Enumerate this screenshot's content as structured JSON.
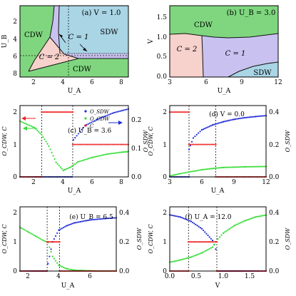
{
  "chart_data": [
    {
      "id": "a",
      "type": "phase-diagram",
      "title": "(a) V = 1.0",
      "xlabel": "U_A",
      "ylabel": "U_B",
      "xlim": [
        1,
        8.5
      ],
      "ylim": [
        8.5,
        0.2
      ],
      "x_ticks": [
        "2",
        "4",
        "6",
        "8"
      ],
      "y_ticks": [
        "2",
        "4",
        "6",
        "8"
      ],
      "regions": [
        {
          "label": "CDW",
          "color": "#7fd67f"
        },
        {
          "label": "SDW",
          "color": "#a9d5e5"
        },
        {
          "label": "C = 1",
          "color": "#c9c2f0"
        },
        {
          "label": "C = 2",
          "color": "#f7d1cb"
        },
        {
          "label": "CDW",
          "color": "#7fd67f"
        }
      ],
      "boundaries": {
        "vertical": {
          "x": [
            3.75,
            3.6,
            3.35,
            2.8,
            2.3,
            1.9
          ],
          "y": [
            0.2,
            2.5,
            3.5,
            5.0,
            6.5,
            7.4
          ]
        },
        "horizontal": {
          "x": [
            4.1,
            5,
            6,
            7,
            8.5
          ],
          "y": [
            3.3,
            3.3,
            3.3,
            3.3,
            3.3
          ]
        },
        "c1_c2": {
          "x": [
            3.2,
            3.8,
            4.4,
            5.0,
            8.5
          ],
          "y": [
            2.2,
            2.9,
            3.4,
            3.6,
            3.6
          ]
        }
      },
      "dashed_lines": {
        "x": [
          2.5,
          4.6
        ],
        "y": [
          2.5,
          3.6
        ]
      }
    },
    {
      "id": "b",
      "type": "phase-diagram",
      "title": "(b) U_B = 3.0",
      "xlabel": "U_A",
      "ylabel": "V",
      "xlim": [
        3,
        12
      ],
      "ylim": [
        0,
        1.8
      ],
      "x_ticks": [
        "3",
        "6",
        "9",
        "12"
      ],
      "y_ticks": [
        "0.0",
        "0.5",
        "1.0",
        "1.5"
      ],
      "regions": [
        {
          "label": "CDW",
          "color": "#7fd67f"
        },
        {
          "label": "C = 2",
          "color": "#f7d1cb"
        },
        {
          "label": "C = 1",
          "color": "#c9c2f0"
        },
        {
          "label": "SDW",
          "color": "#a9d5e5"
        }
      ],
      "boundaries": {
        "top": {
          "x": [
            3,
            4,
            5,
            5.3,
            6,
            7,
            8,
            9,
            10,
            11,
            12
          ],
          "y": [
            1.07,
            1.08,
            1.05,
            1.02,
            0.98,
            0.97,
            0.98,
            1.0,
            1.02,
            1.05,
            1.07
          ]
        },
        "c2_c1": {
          "x": [
            5.3,
            5.35,
            5.4,
            5.45,
            5.5
          ],
          "y": [
            1.02,
            0.7,
            0.4,
            0.15,
            0
          ]
        },
        "sdw": {
          "x": [
            7.2,
            8,
            9,
            10,
            11,
            12
          ],
          "y": [
            0,
            0.12,
            0.2,
            0.26,
            0.3,
            0.35
          ]
        }
      }
    },
    {
      "id": "c",
      "type": "scatter",
      "title": "(c) U_B = 3.6",
      "xlabel": "U_A",
      "ylabel": "O_CDW, C",
      "y2label": "O_SDW",
      "xlim": [
        1,
        8.5
      ],
      "ylim": [
        0,
        2.2
      ],
      "y2lim": [
        0,
        0.25
      ],
      "x_ticks": [
        "2",
        "4",
        "6",
        "8"
      ],
      "y_ticks": [
        "0",
        "1",
        "2"
      ],
      "y2_ticks": [
        "0.0",
        "0.1",
        "0.2"
      ],
      "dashed_lines": [
        2.5,
        4.65
      ],
      "series": [
        {
          "name": "O_SDW",
          "color": "#1f2bd6",
          "axis": "right",
          "x": [
            1.0,
            4.6,
            4.7,
            5.5,
            6.5,
            7.5,
            8.5
          ],
          "values": [
            0.0,
            0.0,
            0.13,
            0.18,
            0.205,
            0.225,
            0.238
          ]
        },
        {
          "name": "O_CDW",
          "color": "#33dd33",
          "axis": "left",
          "x": [
            1.0,
            2.0,
            2.5,
            3.0,
            3.5,
            4.0,
            4.5,
            5.0,
            6.0,
            7.0,
            8.0,
            8.5
          ],
          "values": [
            1.72,
            1.52,
            1.3,
            0.95,
            0.45,
            0.2,
            0.3,
            0.46,
            0.6,
            0.7,
            0.76,
            0.78
          ]
        },
        {
          "name": "C",
          "color": "#ee2222",
          "axis": "left",
          "x": [
            1.0,
            2.5,
            2.5,
            4.65,
            4.65,
            8.5
          ],
          "values": [
            0,
            0,
            2,
            2,
            1,
            1
          ]
        }
      ]
    },
    {
      "id": "d",
      "type": "scatter",
      "title": "(d) V = 0.0",
      "xlabel": "U_A",
      "ylabel": "O_CDW, C",
      "y2label": "O_SDW",
      "xlim": [
        3,
        12
      ],
      "ylim": [
        0,
        2.2
      ],
      "y2lim": [
        0,
        0.44
      ],
      "x_ticks": [
        "3",
        "6",
        "9",
        "12"
      ],
      "y_ticks": [
        "0",
        "1",
        "2"
      ],
      "y2_ticks": [
        "0.0",
        "0.2",
        "0.4"
      ],
      "dashed_lines": [
        4.8,
        7.3
      ],
      "series": [
        {
          "name": "O_SDW",
          "color": "#1f2bd6",
          "axis": "right",
          "x": [
            3.0,
            4.8,
            4.8,
            5.2,
            6.0,
            7.0,
            8.0,
            9.0,
            10.0,
            11.0,
            12.0
          ],
          "values": [
            0.0,
            0.0,
            0.17,
            0.24,
            0.29,
            0.32,
            0.34,
            0.355,
            0.365,
            0.372,
            0.378
          ]
        },
        {
          "name": "O_CDW",
          "color": "#33dd33",
          "axis": "left",
          "x": [
            3.0,
            4.0,
            4.8,
            6.0,
            7.3,
            8.0,
            10.0,
            12.0
          ],
          "values": [
            0.03,
            0.1,
            0.15,
            0.22,
            0.27,
            0.29,
            0.31,
            0.32
          ]
        },
        {
          "name": "C",
          "color": "#ee2222",
          "axis": "left",
          "x": [
            3.0,
            4.8,
            4.8,
            7.3,
            7.3,
            12.0
          ],
          "values": [
            2,
            2,
            1,
            1,
            0,
            0
          ]
        }
      ]
    },
    {
      "id": "e",
      "type": "scatter",
      "title": "(e) U_B = 6.5",
      "xlabel": "U_A",
      "ylabel": "O_CDW, C",
      "y2label": "O_SDW",
      "xlim": [
        1.5,
        7.7
      ],
      "ylim": [
        0,
        2.2
      ],
      "y2lim": [
        0,
        0.44
      ],
      "x_ticks": [
        "2",
        "4",
        "6"
      ],
      "y_ticks": [
        "0",
        "1",
        "2"
      ],
      "y2_ticks": [
        "0.0",
        "0.2",
        "0.4"
      ],
      "dashed_lines": [
        3.25,
        4.05
      ],
      "series": [
        {
          "name": "O_SDW",
          "color": "#1f2bd6",
          "axis": "right",
          "x": [
            1.5,
            3.2,
            3.3,
            3.6,
            4.0,
            4.5,
            5.0,
            6.0,
            7.0,
            7.7
          ],
          "values": [
            0.0,
            0.0,
            0.05,
            0.2,
            0.28,
            0.31,
            0.33,
            0.35,
            0.36,
            0.365
          ]
        },
        {
          "name": "O_CDW",
          "color": "#33dd33",
          "axis": "left",
          "x": [
            1.5,
            2.0,
            2.5,
            3.0,
            3.3,
            3.6,
            4.0,
            4.5,
            5.0,
            5.5,
            6.0,
            6.5,
            7.0,
            7.7
          ],
          "values": [
            1.5,
            1.35,
            1.2,
            1.05,
            0.98,
            0.5,
            0.2,
            0.08,
            0.03,
            0.02,
            0.01,
            0.0,
            0.0,
            0.0
          ]
        },
        {
          "name": "C",
          "color": "#ee2222",
          "axis": "left",
          "x": [
            1.5,
            3.25,
            3.25,
            4.05,
            4.05,
            7.7
          ],
          "values": [
            0,
            0,
            1,
            1,
            0,
            0
          ]
        }
      ]
    },
    {
      "id": "f",
      "type": "scatter",
      "title": "(f) U_A = 12.0",
      "xlabel": "V",
      "ylabel": "O_CDW, C",
      "y2label": "O_SDW",
      "xlim": [
        0,
        1.8
      ],
      "ylim": [
        0,
        2.2
      ],
      "y2lim": [
        0,
        0.44
      ],
      "x_ticks": [
        "0.0",
        "0.5",
        "1.0",
        "1.5"
      ],
      "y_ticks": [
        "0",
        "1",
        "2"
      ],
      "y2_ticks": [
        "0.0",
        "0.2",
        "0.4"
      ],
      "dashed_lines": [
        0.35,
        0.88
      ],
      "series": [
        {
          "name": "O_SDW",
          "color": "#1f2bd6",
          "axis": "right",
          "x": [
            0.0,
            0.2,
            0.4,
            0.6,
            0.8,
            0.86,
            0.9,
            1.8
          ],
          "values": [
            0.385,
            0.37,
            0.34,
            0.29,
            0.21,
            0.15,
            0.0,
            0.0
          ]
        },
        {
          "name": "O_CDW",
          "color": "#33dd33",
          "axis": "left",
          "x": [
            0.0,
            0.2,
            0.4,
            0.6,
            0.8,
            0.9,
            1.0,
            1.2,
            1.4,
            1.6,
            1.8
          ],
          "values": [
            0.3,
            0.38,
            0.48,
            0.62,
            0.82,
            1.1,
            1.3,
            1.55,
            1.72,
            1.85,
            1.92
          ]
        },
        {
          "name": "C",
          "color": "#ee2222",
          "axis": "left",
          "x": [
            0.0,
            0.35,
            0.35,
            0.88,
            0.88,
            1.8
          ],
          "values": [
            0,
            0,
            1,
            1,
            0,
            0
          ]
        }
      ]
    }
  ]
}
